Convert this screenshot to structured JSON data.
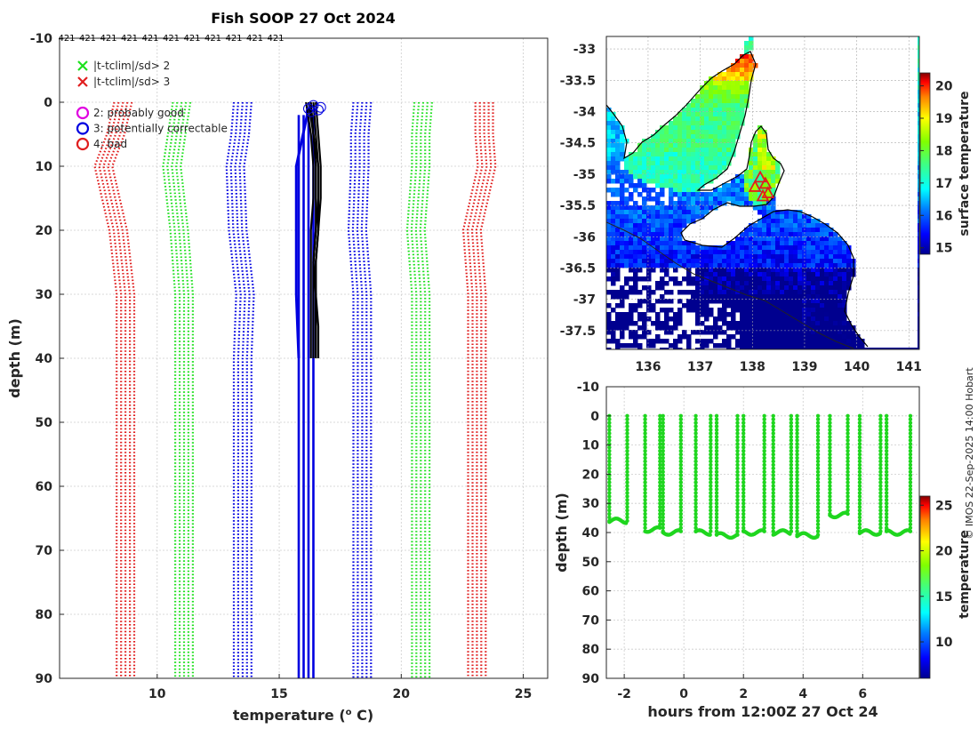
{
  "chart_data": [
    {
      "type": "line",
      "id": "profile",
      "title": "Fish SOOP 27 Oct 2024",
      "top_counts": [
        "421",
        "421",
        "421",
        "421",
        "421",
        "421",
        "421",
        "421",
        "421",
        "421",
        "421"
      ],
      "xlabel": "temperature (° C)",
      "xlabel_main": "temperature (",
      "xlabel_sup": "o",
      "xlabel_tail": " C)",
      "ylabel": "depth (m)",
      "xlim": [
        6,
        26
      ],
      "ylim": [
        -10,
        90
      ],
      "xticks": [
        "10",
        "15",
        "20",
        "25"
      ],
      "yticks": [
        "-10",
        "0",
        "10",
        "20",
        "30",
        "40",
        "50",
        "60",
        "70",
        "80",
        "90"
      ],
      "legend_x": [
        {
          "label": "|t-tclim|/sd> 2",
          "color": "#1ee01e"
        },
        {
          "label": "|t-tclim|/sd> 3",
          "color": "#e01e1e"
        }
      ],
      "legend_o": [
        {
          "label": "2: probably good",
          "color": "#e000e0"
        },
        {
          "label": "3: potentially correctable",
          "color": "#0000e0"
        },
        {
          "label": "4: bad",
          "color": "#e01e1e"
        }
      ],
      "envelope_depths": [
        0,
        5,
        10,
        20,
        30,
        40,
        50,
        60,
        70,
        80,
        90
      ],
      "envelopes": [
        {
          "name": "clim -3sd",
          "color": "#e01e1e",
          "temps": [
            8.6,
            8.3,
            7.8,
            8.4,
            8.7,
            8.7,
            8.7,
            8.7,
            8.7,
            8.7,
            8.7
          ]
        },
        {
          "name": "clim -2sd",
          "color": "#1ee01e",
          "temps": [
            11.0,
            10.8,
            10.6,
            10.9,
            11.1,
            11.1,
            11.1,
            11.1,
            11.1,
            11.1,
            11.1
          ]
        },
        {
          "name": "clim -1sd",
          "color": "#0000e0",
          "temps": [
            13.5,
            13.4,
            13.2,
            13.3,
            13.6,
            13.5,
            13.5,
            13.5,
            13.5,
            13.5,
            13.5
          ]
        },
        {
          "name": "clim +1sd",
          "color": "#0000e0",
          "temps": [
            18.4,
            18.3,
            18.3,
            18.2,
            18.4,
            18.4,
            18.4,
            18.4,
            18.4,
            18.4,
            18.4
          ]
        },
        {
          "name": "clim +2sd",
          "color": "#1ee01e",
          "temps": [
            20.9,
            20.8,
            20.8,
            20.6,
            20.8,
            20.8,
            20.8,
            20.8,
            20.8,
            20.8,
            20.8
          ]
        },
        {
          "name": "clim +3sd",
          "color": "#e01e1e",
          "temps": [
            23.4,
            23.4,
            23.5,
            22.9,
            23.1,
            23.1,
            23.1,
            23.1,
            23.1,
            23.1,
            23.1
          ]
        }
      ],
      "profile_depths": [
        0,
        5,
        10,
        15,
        20,
        25,
        30,
        35,
        40
      ],
      "profiles": [
        [
          16.3,
          16.4,
          16.5,
          16.5,
          16.5,
          16.4,
          16.4,
          16.4,
          16.4
        ],
        [
          16.2,
          16.4,
          16.6,
          16.6,
          16.6,
          16.5,
          16.5,
          16.5,
          16.5
        ],
        [
          16.4,
          16.5,
          16.6,
          16.6,
          16.5,
          16.4,
          16.5,
          16.6,
          16.6
        ],
        [
          16.1,
          16.3,
          16.4,
          16.4,
          16.3,
          16.3,
          16.3,
          16.3,
          16.3
        ],
        [
          16.5,
          16.6,
          16.7,
          16.7,
          16.6,
          16.5,
          16.5,
          16.5,
          16.5
        ]
      ],
      "blue_band": {
        "temps": [
          15.8,
          16.0,
          16.2,
          16.4
        ],
        "from_depth": 0,
        "to_depth": 90
      },
      "flag_circles": [
        {
          "t": 16.2,
          "d": 1
        },
        {
          "t": 16.4,
          "d": 0.5
        },
        {
          "t": 16.6,
          "d": 1.2
        },
        {
          "t": 16.3,
          "d": 1.5
        },
        {
          "t": 16.7,
          "d": 0.8
        }
      ]
    },
    {
      "type": "heatmap",
      "id": "map",
      "colorbar_label": "surface temperature",
      "xlim": [
        135.2,
        141.2
      ],
      "ylim": [
        -37.8,
        -32.8
      ],
      "xticks": [
        "136",
        "137",
        "138",
        "139",
        "140",
        "141"
      ],
      "yticks": [
        "-33",
        "-33.5",
        "-34",
        "-34.5",
        "-35",
        "-35.5",
        "-36",
        "-36.5",
        "-37",
        "-37.5"
      ],
      "clim": [
        14.8,
        20.4
      ],
      "cbar_ticks": [
        "15",
        "16",
        "17",
        "18",
        "19",
        "20"
      ],
      "cmap": [
        "#00008f",
        "#0000ff",
        "#0080ff",
        "#00ffff",
        "#40ff80",
        "#80ff00",
        "#ffff00",
        "#ff8000",
        "#ff0000",
        "#800000"
      ],
      "track_markers": [
        {
          "lon": 138.15,
          "lat": -35.05
        },
        {
          "lon": 138.25,
          "lat": -35.15
        },
        {
          "lon": 138.05,
          "lat": -35.2
        },
        {
          "lon": 138.3,
          "lat": -35.3
        },
        {
          "lon": 138.2,
          "lat": -35.35
        }
      ]
    },
    {
      "type": "scatter",
      "id": "timeseries",
      "xlabel": "hours from 12:00Z 27 Oct 24",
      "ylabel": "depth (m)",
      "colorbar_label": "temperature",
      "xlim": [
        -2.6,
        7.9
      ],
      "ylim": [
        -10,
        90
      ],
      "xticks": [
        "-2",
        "0",
        "2",
        "4",
        "6"
      ],
      "yticks": [
        "-10",
        "0",
        "10",
        "20",
        "30",
        "40",
        "50",
        "60",
        "70",
        "80",
        "90"
      ],
      "clim": [
        6,
        26
      ],
      "cbar_ticks": [
        "10",
        "15",
        "20",
        "25"
      ],
      "point_temperature": 16.4,
      "point_color": "#1fd61f",
      "dives": [
        {
          "t_start": -2.5,
          "t_end": -1.9,
          "depth": 36
        },
        {
          "t_start": -1.3,
          "t_end": -0.8,
          "depth": 39
        },
        {
          "t_start": -0.7,
          "t_end": -0.1,
          "depth": 40
        },
        {
          "t_start": 0.4,
          "t_end": 0.9,
          "depth": 40
        },
        {
          "t_start": 1.1,
          "t_end": 1.8,
          "depth": 41
        },
        {
          "t_start": 2.0,
          "t_end": 2.7,
          "depth": 40
        },
        {
          "t_start": 3.0,
          "t_end": 3.6,
          "depth": 40
        },
        {
          "t_start": 3.8,
          "t_end": 4.5,
          "depth": 41
        },
        {
          "t_start": 4.9,
          "t_end": 5.5,
          "depth": 34
        },
        {
          "t_start": 5.9,
          "t_end": 6.6,
          "depth": 40
        },
        {
          "t_start": 6.8,
          "t_end": 7.6,
          "depth": 40
        }
      ]
    }
  ],
  "footer": {
    "copyright": "© IMOS 22-Sep-2025 14:00 Hobart"
  }
}
